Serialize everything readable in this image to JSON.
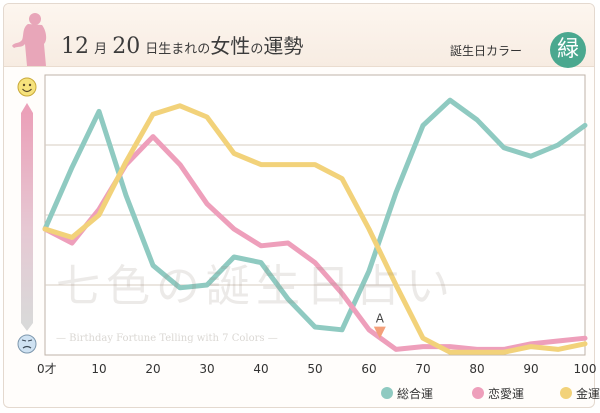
{
  "header": {
    "month": "12",
    "month_unit": "月",
    "day": "20",
    "day_unit": "日生まれの",
    "gender": "女性",
    "particle": "の",
    "subject": "運勢",
    "birth_color_label": "誕生日カラー",
    "birth_color_name": "緑",
    "birth_color_hex": "#4aa88f"
  },
  "watermark": {
    "main": "七色の誕生日占い",
    "sub": "— Birthday Fortune Telling with 7 Colors —"
  },
  "chart_data": {
    "type": "line",
    "x": [
      0,
      5,
      10,
      15,
      20,
      25,
      30,
      35,
      40,
      45,
      50,
      55,
      60,
      65,
      70,
      75,
      80,
      85,
      90,
      95,
      100
    ],
    "xlim": [
      0,
      100
    ],
    "ylim": [
      0,
      100
    ],
    "x_ticks": [
      {
        "value": 0,
        "label": "0才"
      },
      {
        "value": 10,
        "label": "10"
      },
      {
        "value": 20,
        "label": "20"
      },
      {
        "value": 30,
        "label": "30"
      },
      {
        "value": 40,
        "label": "40"
      },
      {
        "value": 50,
        "label": "50"
      },
      {
        "value": 60,
        "label": "60"
      },
      {
        "value": 70,
        "label": "70"
      },
      {
        "value": 80,
        "label": "80"
      },
      {
        "value": 90,
        "label": "90"
      },
      {
        "value": 100,
        "label": "100"
      }
    ],
    "y_gridlines": [
      25,
      50,
      75
    ],
    "series": [
      {
        "name": "総合運",
        "color": "#8fcac1",
        "values": [
          45,
          67,
          87,
          57,
          32,
          24,
          25,
          35,
          33,
          20,
          10,
          9,
          30,
          58,
          82,
          91,
          84,
          74,
          71,
          75,
          82
        ]
      },
      {
        "name": "恋愛運",
        "color": "#ee9fbb",
        "values": [
          45,
          40,
          52,
          68,
          78,
          68,
          54,
          45,
          39,
          40,
          33,
          22,
          9,
          2,
          3,
          3,
          2,
          2,
          4,
          5,
          6
        ]
      },
      {
        "name": "金運",
        "color": "#f2d27a",
        "values": [
          45,
          42,
          50,
          69,
          86,
          89,
          85,
          72,
          68,
          68,
          68,
          63,
          45,
          25,
          6,
          1,
          1,
          1,
          3,
          2,
          4
        ]
      }
    ],
    "annotation": {
      "label": "A",
      "x": 62,
      "y": 8,
      "color": "#f4a07a"
    },
    "y_axis_icons": {
      "top": "smile-face-icon",
      "bottom": "sad-face-icon"
    },
    "legend": {
      "position": "bottom-right"
    }
  }
}
